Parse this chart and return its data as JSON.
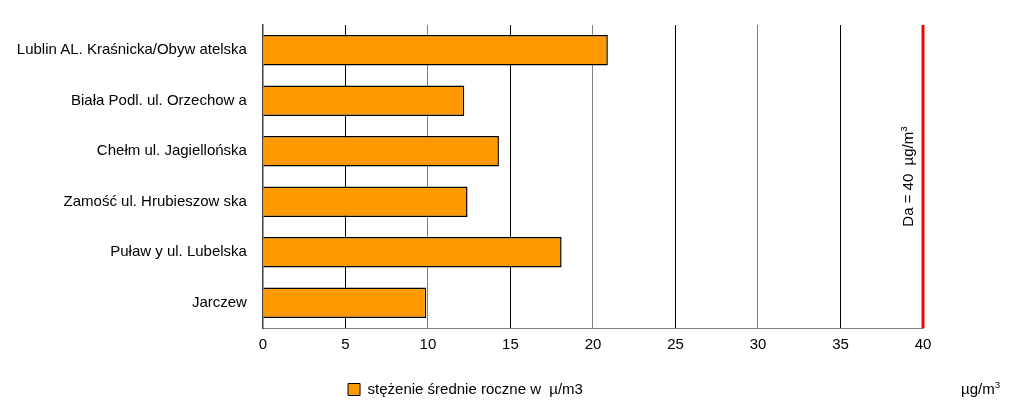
{
  "chart_data": {
    "type": "bar",
    "orientation": "horizontal",
    "categories": [
      "Lublin AL. Kraśnicka/Obyw atelska",
      "Biała Podl. ul. Orzechow a",
      "Chełm ul. Jagiellońska",
      "Zamość ul. Hrubieszow ska",
      "Puław y ul. Lubelska",
      "Jarczew"
    ],
    "series": [
      {
        "name": "stężenie średnie roczne w  µ/m3",
        "color": "#ff9900",
        "values": [
          20.9,
          12.2,
          14.3,
          12.4,
          18.1,
          9.9
        ]
      }
    ],
    "xlim": [
      0,
      40
    ],
    "xticks": [
      0,
      5,
      10,
      15,
      20,
      25,
      30,
      35,
      40
    ],
    "xlabel": "µg/m$^{3}$",
    "grid": "x",
    "legend": "bottom",
    "ref_lines": [
      {
        "axis": "x",
        "value": 40,
        "label": "Da = 40  µg/m$^{3}$",
        "color": "#ff0000"
      }
    ]
  }
}
